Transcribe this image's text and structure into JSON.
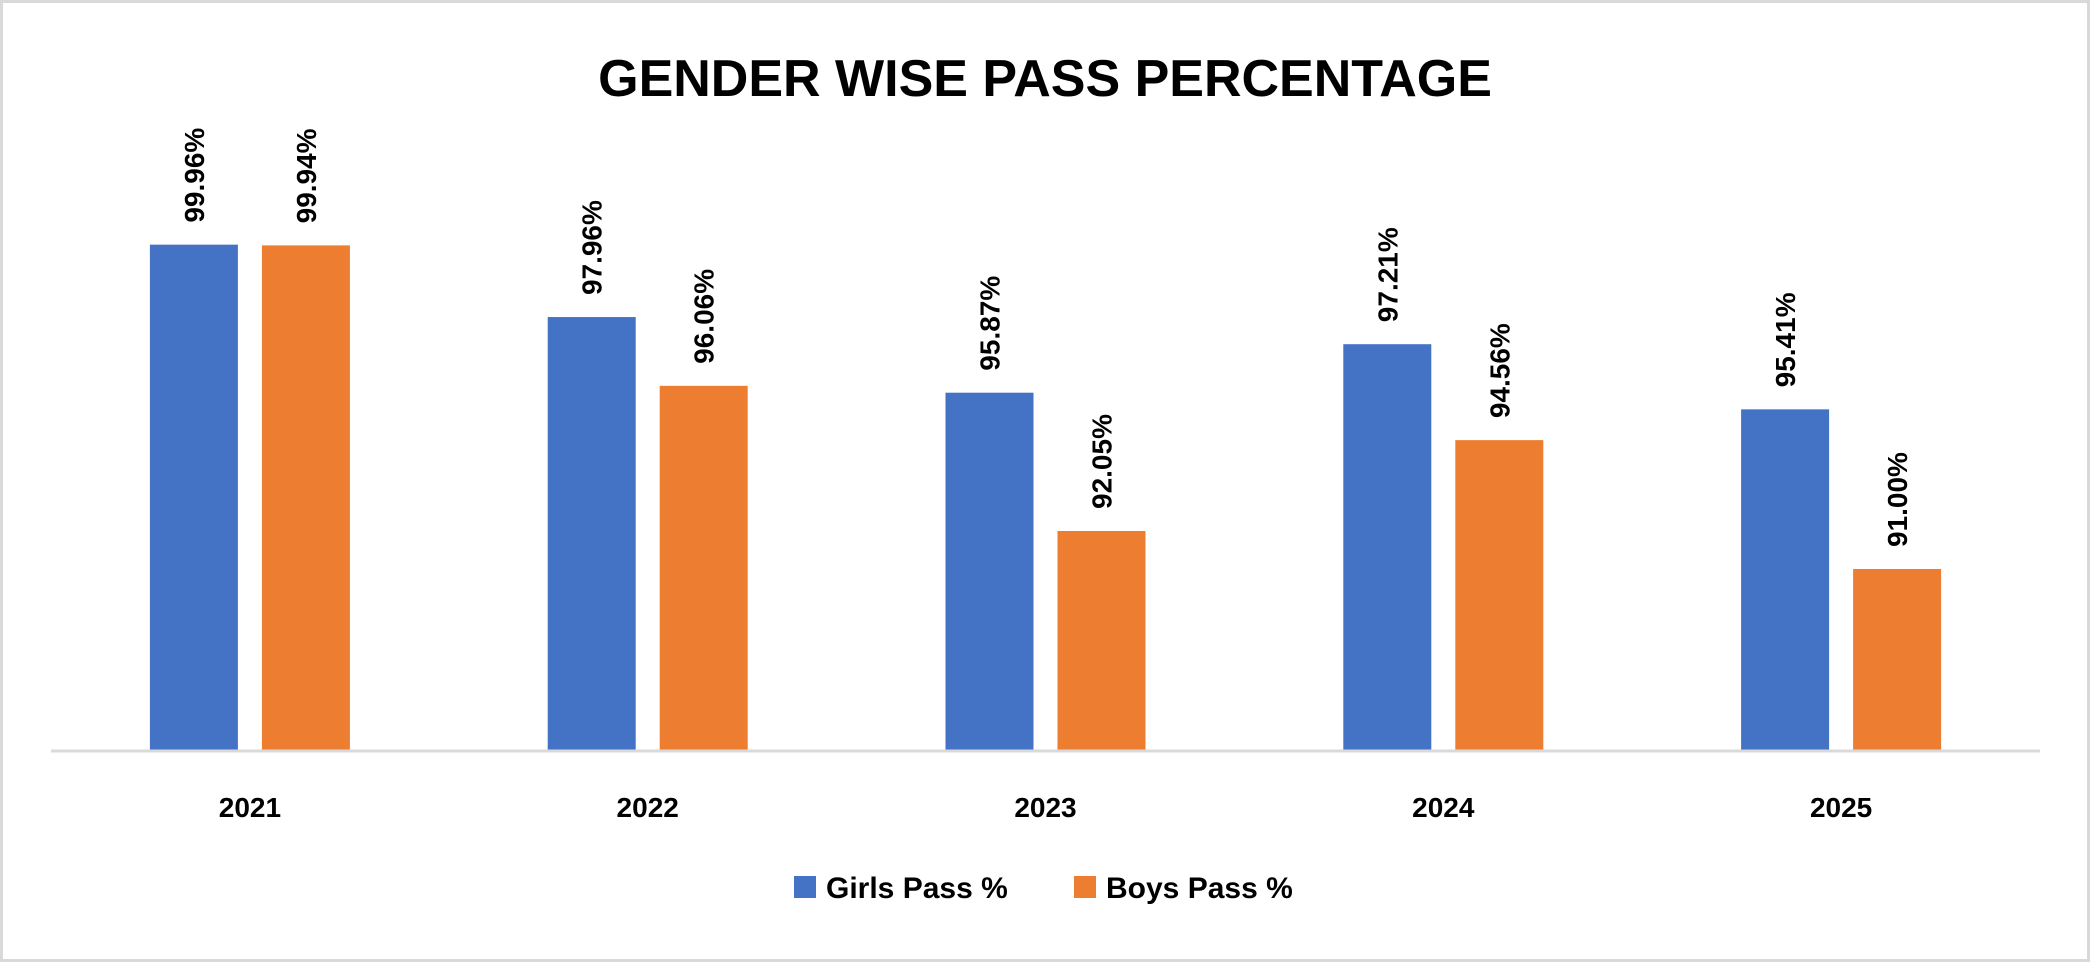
{
  "chart_data": {
    "type": "bar",
    "title": "GENDER WISE PASS PERCENTAGE",
    "categories": [
      "2021",
      "2022",
      "2023",
      "2024",
      "2025"
    ],
    "series": [
      {
        "name": "Girls Pass %",
        "color": "#4472c4",
        "values": [
          99.96,
          97.96,
          95.87,
          97.21,
          95.41
        ],
        "labels": [
          "99.96%",
          "97.96%",
          "95.87%",
          "97.21%",
          "95.41%"
        ]
      },
      {
        "name": "Boys Pass %",
        "color": "#ed7d31",
        "values": [
          99.94,
          96.06,
          92.05,
          94.56,
          91.0
        ],
        "labels": [
          "99.94%",
          "96.06%",
          "92.05%",
          "94.56%",
          "91.00%"
        ]
      }
    ],
    "xlabel": "",
    "ylabel": "",
    "ylim": [
      86,
      101
    ],
    "grid": false,
    "y_axis_visible": false,
    "data_labels": "rotated-vertical",
    "legend_position": "bottom"
  }
}
